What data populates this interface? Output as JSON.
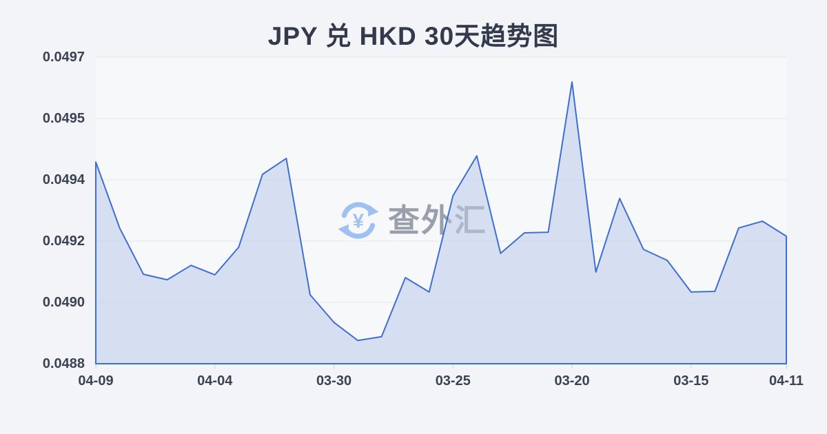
{
  "page": {
    "background": "#f3f4f7"
  },
  "chart_data": {
    "type": "area",
    "title": "JPY 兑 HKD 30天趋势图",
    "series_name": "JPY/HKD",
    "xlabel": "",
    "ylabel": "",
    "grid": true,
    "legend_position": "none",
    "x_tick_labels": [
      {
        "label": "04-09",
        "index": 0
      },
      {
        "label": "04-04",
        "index": 5
      },
      {
        "label": "03-30",
        "index": 10
      },
      {
        "label": "03-25",
        "index": 15
      },
      {
        "label": "03-20",
        "index": 20
      },
      {
        "label": "03-15",
        "index": 25
      },
      {
        "label": "04-11",
        "index": 29
      }
    ],
    "y_ticks": [
      {
        "label": "0.0497",
        "value": 0.0497
      },
      {
        "label": "0.0495",
        "value": 0.0495
      },
      {
        "label": "0.0494",
        "value": 0.0494
      },
      {
        "label": "0.0492",
        "value": 0.0492
      },
      {
        "label": "0.0490",
        "value": 0.049
      },
      {
        "label": "0.0488",
        "value": 0.0488
      }
    ],
    "values": [
      0.049429,
      0.049243,
      0.049092,
      0.049074,
      0.049121,
      0.04909,
      0.04918,
      0.049409,
      0.049435,
      0.049025,
      0.048935,
      0.048876,
      0.048888,
      0.049081,
      0.049034,
      0.049348,
      0.049439,
      0.04916,
      0.049227,
      0.049229,
      0.049619,
      0.049099,
      0.049339,
      0.049173,
      0.049137,
      0.049034,
      0.049036,
      0.049243,
      0.049265,
      0.049216
    ],
    "ylim": [
      0.0488,
      0.0497
    ],
    "line_color": "#3e6ed2",
    "fill_color": "#b9cbe9",
    "fill_opacity": 0.55,
    "plot_bg_color": "#f7f8fa",
    "grid_color": "#e3e6ea",
    "tick_color": "#ccd0d8",
    "title_color": "#333a4c",
    "label_color": "#3b4254"
  },
  "watermark": {
    "text": "查外汇",
    "icon": "yen-refresh-icon",
    "text_color": "#9aa0ab",
    "icon_color": "#9fc0f0"
  }
}
